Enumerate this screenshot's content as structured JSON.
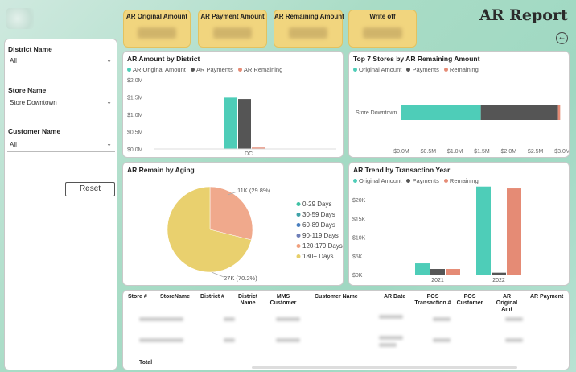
{
  "title": "AR Report",
  "colors": {
    "original": "#4ecdb8",
    "payments": "#555555",
    "remaining": "#e58b75",
    "kpi": "#f1d57e"
  },
  "kpis": [
    {
      "label": "AR Original Amount"
    },
    {
      "label": "AR Payment Amount"
    },
    {
      "label": "AR Remaining Amount"
    },
    {
      "label": "Write off"
    }
  ],
  "filters": {
    "district": {
      "label": "District Name",
      "value": "All"
    },
    "store": {
      "label": "Store Name",
      "value": "Store Downtown"
    },
    "customer": {
      "label": "Customer Name",
      "value": "All"
    },
    "reset_label": "Reset"
  },
  "district_chart": {
    "title": "AR Amount by District",
    "legend": [
      "AR Original Amount",
      "AR Payments",
      "AR Remaining"
    ],
    "yticks": [
      "$2.0M",
      "$1.5M",
      "$1.0M",
      "$0.5M",
      "$0.0M"
    ],
    "chart_data": {
      "type": "bar",
      "categories": [
        "DC"
      ],
      "series": [
        {
          "name": "AR Original Amount",
          "values": [
            1.48
          ]
        },
        {
          "name": "AR Payments",
          "values": [
            1.44
          ]
        },
        {
          "name": "AR Remaining",
          "values": [
            0.04
          ]
        }
      ],
      "ylim": [
        0,
        2.0
      ]
    }
  },
  "stores_chart": {
    "title": "Top 7 Stores by AR Remaining Amount",
    "legend": [
      "Original Amount",
      "Payments",
      "Remaining"
    ],
    "xticks": [
      "$0.0M",
      "$0.5M",
      "$1.0M",
      "$1.5M",
      "$2.0M",
      "$2.5M",
      "$3.0M"
    ],
    "chart_data": {
      "type": "bar",
      "categories": [
        "Store Downtown"
      ],
      "series": [
        {
          "name": "Original Amount",
          "values": [
            1.48
          ]
        },
        {
          "name": "Payments",
          "values": [
            1.44
          ]
        },
        {
          "name": "Remaining",
          "values": [
            0.04
          ]
        }
      ],
      "xlim": [
        0,
        3.0
      ]
    }
  },
  "aging_chart": {
    "title": "AR Remain by Aging",
    "legend": [
      "0-29 Days",
      "30-59 Days",
      "60-89 Days",
      "90-119 Days",
      "120-179 Days",
      "180+ Days"
    ],
    "legend_colors": [
      "#3fc1a4",
      "#3fa2a8",
      "#4a7fbf",
      "#6f7fb8",
      "#f0a07e",
      "#e6cf6a"
    ],
    "label_small": "11K (29.8%)",
    "label_large": "27K (70.2%)",
    "chart_data": {
      "type": "pie",
      "slices": [
        {
          "name": "120-179 Days",
          "value": 11,
          "percent": 29.8
        },
        {
          "name": "180+ Days",
          "value": 27,
          "percent": 70.2
        }
      ]
    }
  },
  "trend_chart": {
    "title": "AR Trend by Transaction Year",
    "legend": [
      "Original Amount",
      "Payments",
      "Remaining"
    ],
    "yticks": [
      "$20K",
      "$15K",
      "$10K",
      "$5K",
      "$0K"
    ],
    "chart_data": {
      "type": "bar",
      "categories": [
        "2021",
        "2022"
      ],
      "series": [
        {
          "name": "Original Amount",
          "values": [
            3000,
            23500
          ]
        },
        {
          "name": "Payments",
          "values": [
            1500,
            500
          ]
        },
        {
          "name": "Remaining",
          "values": [
            1500,
            23000
          ]
        }
      ],
      "ylim": [
        0,
        24000
      ]
    }
  },
  "table": {
    "headers": [
      "Store #",
      "StoreName",
      "District #",
      "District Name",
      "MMS Customer",
      "Customer Name",
      "AR Date",
      "POS Transaction #",
      "POS Customer",
      "AR Original Amt",
      "AR Payment"
    ],
    "total_label": "Total"
  }
}
